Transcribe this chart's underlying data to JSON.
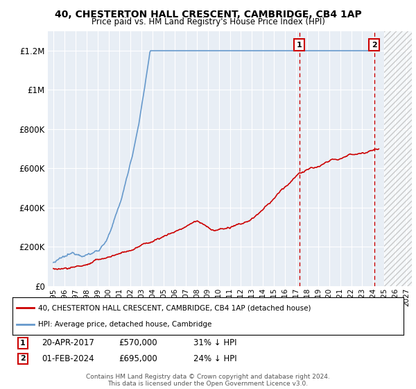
{
  "title": "40, CHESTERTON HALL CRESCENT, CAMBRIDGE, CB4 1AP",
  "subtitle": "Price paid vs. HM Land Registry's House Price Index (HPI)",
  "ylabel_ticks": [
    "£0",
    "£200K",
    "£400K",
    "£600K",
    "£800K",
    "£1M",
    "£1.2M"
  ],
  "ytick_values": [
    0,
    200000,
    400000,
    600000,
    800000,
    1000000,
    1200000
  ],
  "ylim": [
    0,
    1300000
  ],
  "xlim_start": 1994.5,
  "xlim_end": 2027.5,
  "sale1_date": "20-APR-2017",
  "sale1_price": 570000,
  "sale1_pct": "31% ↓ HPI",
  "sale1_x": 2017.3,
  "sale2_date": "01-FEB-2024",
  "sale2_price": 695000,
  "sale2_pct": "24% ↓ HPI",
  "sale2_x": 2024.08,
  "red_line_color": "#cc0000",
  "blue_line_color": "#6699cc",
  "plot_bg_color": "#e8eef5",
  "grid_color": "#ffffff",
  "hatch_start": 2025.0,
  "legend_label_red": "40, CHESTERTON HALL CRESCENT, CAMBRIDGE, CB4 1AP (detached house)",
  "legend_label_blue": "HPI: Average price, detached house, Cambridge",
  "footer": "Contains HM Land Registry data © Crown copyright and database right 2024.\nThis data is licensed under the Open Government Licence v3.0."
}
